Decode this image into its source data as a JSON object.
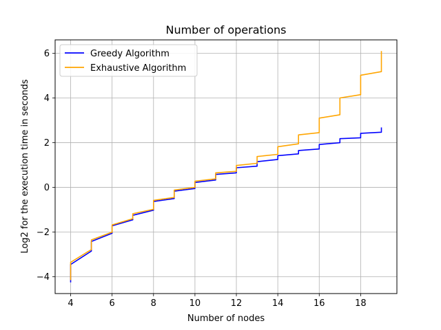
{
  "chart_data": {
    "type": "line",
    "title": "Number of operations",
    "xlabel": "Number of nodes",
    "ylabel": "Log2 for the execution time in seconds",
    "xlim": [
      3.25,
      19.75
    ],
    "ylim": [
      -4.75,
      6.6
    ],
    "xticks": [
      4,
      6,
      8,
      10,
      12,
      14,
      16,
      18
    ],
    "yticks": [
      -4,
      -2,
      0,
      2,
      4,
      6
    ],
    "grid": true,
    "legend_position": "top-left",
    "series": [
      {
        "name": "Greedy Algorithm",
        "color": "#0000ff",
        "points": [
          [
            4,
            -4.25
          ],
          [
            4,
            -3.45
          ],
          [
            5,
            -2.85
          ],
          [
            5,
            -2.42
          ],
          [
            6,
            -2.05
          ],
          [
            6,
            -1.72
          ],
          [
            7,
            -1.45
          ],
          [
            7,
            -1.25
          ],
          [
            8,
            -1.02
          ],
          [
            8,
            -0.63
          ],
          [
            9,
            -0.5
          ],
          [
            9,
            -0.17
          ],
          [
            10,
            -0.05
          ],
          [
            10,
            0.22
          ],
          [
            11,
            0.33
          ],
          [
            11,
            0.58
          ],
          [
            12,
            0.65
          ],
          [
            12,
            0.88
          ],
          [
            13,
            0.95
          ],
          [
            13,
            1.15
          ],
          [
            14,
            1.25
          ],
          [
            14,
            1.42
          ],
          [
            15,
            1.5
          ],
          [
            15,
            1.65
          ],
          [
            16,
            1.72
          ],
          [
            16,
            1.92
          ],
          [
            17,
            2.0
          ],
          [
            17,
            2.18
          ],
          [
            18,
            2.22
          ],
          [
            18,
            2.42
          ],
          [
            19,
            2.47
          ],
          [
            19,
            2.68
          ]
        ]
      },
      {
        "name": "Exhaustive Algorithm",
        "color": "#ffa500",
        "points": [
          [
            4,
            -4.15
          ],
          [
            4,
            -3.35
          ],
          [
            5,
            -2.78
          ],
          [
            5,
            -2.35
          ],
          [
            6,
            -2.0
          ],
          [
            6,
            -1.68
          ],
          [
            7,
            -1.4
          ],
          [
            7,
            -1.18
          ],
          [
            8,
            -0.98
          ],
          [
            8,
            -0.58
          ],
          [
            9,
            -0.45
          ],
          [
            9,
            -0.12
          ],
          [
            10,
            0.0
          ],
          [
            10,
            0.28
          ],
          [
            11,
            0.38
          ],
          [
            11,
            0.65
          ],
          [
            12,
            0.72
          ],
          [
            12,
            0.98
          ],
          [
            13,
            1.08
          ],
          [
            13,
            1.38
          ],
          [
            14,
            1.48
          ],
          [
            14,
            1.82
          ],
          [
            15,
            1.95
          ],
          [
            15,
            2.35
          ],
          [
            16,
            2.45
          ],
          [
            16,
            3.1
          ],
          [
            17,
            3.25
          ],
          [
            17,
            4.0
          ],
          [
            18,
            4.15
          ],
          [
            18,
            5.02
          ],
          [
            19,
            5.18
          ],
          [
            19,
            6.1
          ]
        ]
      }
    ]
  }
}
